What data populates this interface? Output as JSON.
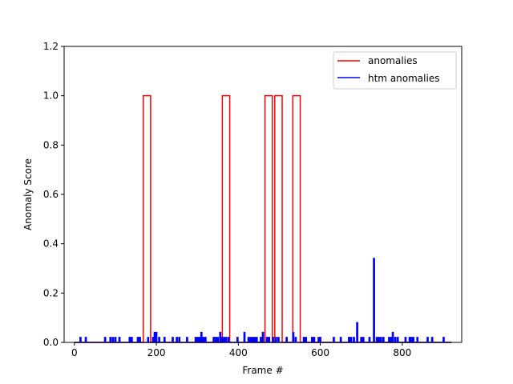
{
  "chart_data": {
    "type": "line",
    "xlabel": "Frame #",
    "ylabel": "Anomaly Score",
    "xlim": [
      -25,
      945
    ],
    "ylim": [
      0,
      1.2
    ],
    "xticks": [
      0,
      200,
      400,
      600,
      800
    ],
    "yticks": [
      0.0,
      0.2,
      0.4,
      0.6,
      0.8,
      1.0,
      1.2
    ],
    "xtick_labels": [
      "0",
      "200",
      "400",
      "600",
      "800"
    ],
    "ytick_labels": [
      "0.0",
      "0.2",
      "0.4",
      "0.6",
      "0.8",
      "1.0",
      "1.2"
    ],
    "grid": false,
    "legend_position": "top-right",
    "series": [
      {
        "name": "anomalies",
        "color": "#ff0000",
        "style": "step",
        "intervals": [
          [
            168,
            186
          ],
          [
            361,
            379
          ],
          [
            465,
            483
          ],
          [
            489,
            507
          ],
          [
            533,
            551
          ]
        ],
        "x_end": 920
      },
      {
        "name": "htm anomalies",
        "color": "#0000ff",
        "style": "spikes",
        "x_end": 920,
        "points": [
          [
            15,
            0.02
          ],
          [
            28,
            0.02
          ],
          [
            75,
            0.02
          ],
          [
            88,
            0.02
          ],
          [
            94,
            0.02
          ],
          [
            100,
            0.02
          ],
          [
            110,
            0.02
          ],
          [
            135,
            0.02
          ],
          [
            140,
            0.02
          ],
          [
            155,
            0.02
          ],
          [
            160,
            0.02
          ],
          [
            180,
            0.02
          ],
          [
            192,
            0.02
          ],
          [
            196,
            0.04
          ],
          [
            200,
            0.04
          ],
          [
            207,
            0.02
          ],
          [
            220,
            0.02
          ],
          [
            240,
            0.02
          ],
          [
            250,
            0.02
          ],
          [
            256,
            0.02
          ],
          [
            275,
            0.02
          ],
          [
            296,
            0.02
          ],
          [
            300,
            0.02
          ],
          [
            305,
            0.02
          ],
          [
            310,
            0.04
          ],
          [
            315,
            0.02
          ],
          [
            320,
            0.02
          ],
          [
            340,
            0.02
          ],
          [
            345,
            0.02
          ],
          [
            350,
            0.02
          ],
          [
            356,
            0.04
          ],
          [
            360,
            0.02
          ],
          [
            365,
            0.02
          ],
          [
            370,
            0.02
          ],
          [
            376,
            0.02
          ],
          [
            398,
            0.02
          ],
          [
            415,
            0.04
          ],
          [
            425,
            0.02
          ],
          [
            430,
            0.02
          ],
          [
            435,
            0.02
          ],
          [
            440,
            0.02
          ],
          [
            445,
            0.02
          ],
          [
            455,
            0.02
          ],
          [
            460,
            0.04
          ],
          [
            470,
            0.02
          ],
          [
            475,
            0.02
          ],
          [
            485,
            0.02
          ],
          [
            492,
            0.02
          ],
          [
            498,
            0.02
          ],
          [
            518,
            0.02
          ],
          [
            534,
            0.04
          ],
          [
            540,
            0.02
          ],
          [
            560,
            0.02
          ],
          [
            565,
            0.02
          ],
          [
            580,
            0.02
          ],
          [
            585,
            0.02
          ],
          [
            596,
            0.02
          ],
          [
            600,
            0.02
          ],
          [
            633,
            0.02
          ],
          [
            650,
            0.02
          ],
          [
            670,
            0.02
          ],
          [
            675,
            0.02
          ],
          [
            682,
            0.02
          ],
          [
            690,
            0.08
          ],
          [
            700,
            0.02
          ],
          [
            705,
            0.02
          ],
          [
            720,
            0.02
          ],
          [
            731,
            0.34
          ],
          [
            738,
            0.02
          ],
          [
            743,
            0.02
          ],
          [
            748,
            0.02
          ],
          [
            754,
            0.02
          ],
          [
            768,
            0.02
          ],
          [
            773,
            0.02
          ],
          [
            777,
            0.04
          ],
          [
            783,
            0.02
          ],
          [
            789,
            0.02
          ],
          [
            808,
            0.02
          ],
          [
            818,
            0.02
          ],
          [
            822,
            0.02
          ],
          [
            827,
            0.02
          ],
          [
            837,
            0.02
          ],
          [
            862,
            0.02
          ],
          [
            873,
            0.02
          ],
          [
            901,
            0.02
          ]
        ]
      }
    ]
  }
}
